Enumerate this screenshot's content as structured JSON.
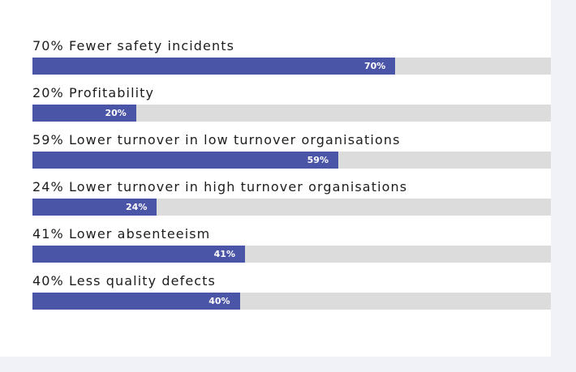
{
  "colors": {
    "bar_fill": "#4b55a7",
    "bar_track": "#dcdcdc",
    "card": "#ffffff",
    "page_background": "#f1f2f8"
  },
  "chart_data": {
    "type": "bar",
    "orientation": "horizontal",
    "xlim": [
      0,
      100
    ],
    "grid": false,
    "categories": [
      "70% Fewer safety incidents",
      "20% Profitability",
      "59% Lower turnover in low turnover organisations",
      "24% Lower turnover in high turnover organisations",
      "41% Lower absenteeism",
      "40% Less quality defects"
    ],
    "values": [
      70,
      20,
      59,
      24,
      41,
      40
    ],
    "value_labels": [
      "70%",
      "20%",
      "59%",
      "24%",
      "41%",
      "40%"
    ]
  }
}
